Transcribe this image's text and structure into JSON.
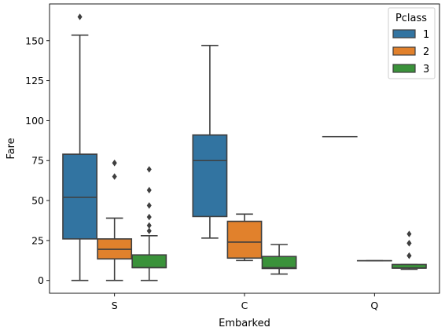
{
  "chart_data": {
    "type": "boxplot",
    "title": "",
    "xlabel": "Embarked",
    "ylabel": "Fare",
    "categories": [
      "S",
      "C",
      "Q"
    ],
    "ylim": [
      -8,
      173
    ],
    "yticks": [
      0,
      25,
      50,
      75,
      100,
      125,
      150
    ],
    "legend": {
      "title": "Pclass",
      "position": "top-right"
    },
    "series": [
      {
        "name": "1",
        "color": "#3274a1",
        "boxes": [
          {
            "category": "S",
            "whisker_low": 0,
            "q1": 26,
            "median": 52,
            "q3": 79,
            "whisker_high": 153.5,
            "outliers": [
              164.9
            ]
          },
          {
            "category": "C",
            "whisker_low": 26.5,
            "q1": 40,
            "median": 75,
            "q3": 91,
            "whisker_high": 147,
            "outliers": []
          },
          {
            "category": "Q",
            "whisker_low": 90,
            "q1": 90,
            "median": 90,
            "q3": 90,
            "whisker_high": 90,
            "outliers": []
          }
        ]
      },
      {
        "name": "2",
        "color": "#e1812c",
        "boxes": [
          {
            "category": "S",
            "whisker_low": 0,
            "q1": 13.5,
            "median": 19.5,
            "q3": 26,
            "whisker_high": 39,
            "outliers": [
              65,
              73.5,
              73.5
            ]
          },
          {
            "category": "C",
            "whisker_low": 12.5,
            "q1": 14,
            "median": 24,
            "q3": 37,
            "whisker_high": 41.5,
            "outliers": []
          },
          {
            "category": "Q",
            "whisker_low": 12.35,
            "q1": 12.35,
            "median": 12.35,
            "q3": 12.35,
            "whisker_high": 12.35,
            "outliers": []
          }
        ]
      },
      {
        "name": "3",
        "color": "#3a923a",
        "boxes": [
          {
            "category": "S",
            "whisker_low": 0,
            "q1": 8,
            "median": 8.05,
            "q3": 16,
            "whisker_high": 28,
            "outliers": [
              31,
              34.4,
              39.7,
              46.9,
              56.5,
              69.5
            ]
          },
          {
            "category": "C",
            "whisker_low": 4,
            "q1": 7.5,
            "median": 8,
            "q3": 15,
            "whisker_high": 22.5,
            "outliers": []
          },
          {
            "category": "Q",
            "whisker_low": 7,
            "q1": 7.75,
            "median": 7.75,
            "q3": 10,
            "whisker_high": 10,
            "outliers": [
              15.5,
              15.5,
              23.3,
              23.3,
              29.1
            ]
          }
        ]
      }
    ]
  }
}
